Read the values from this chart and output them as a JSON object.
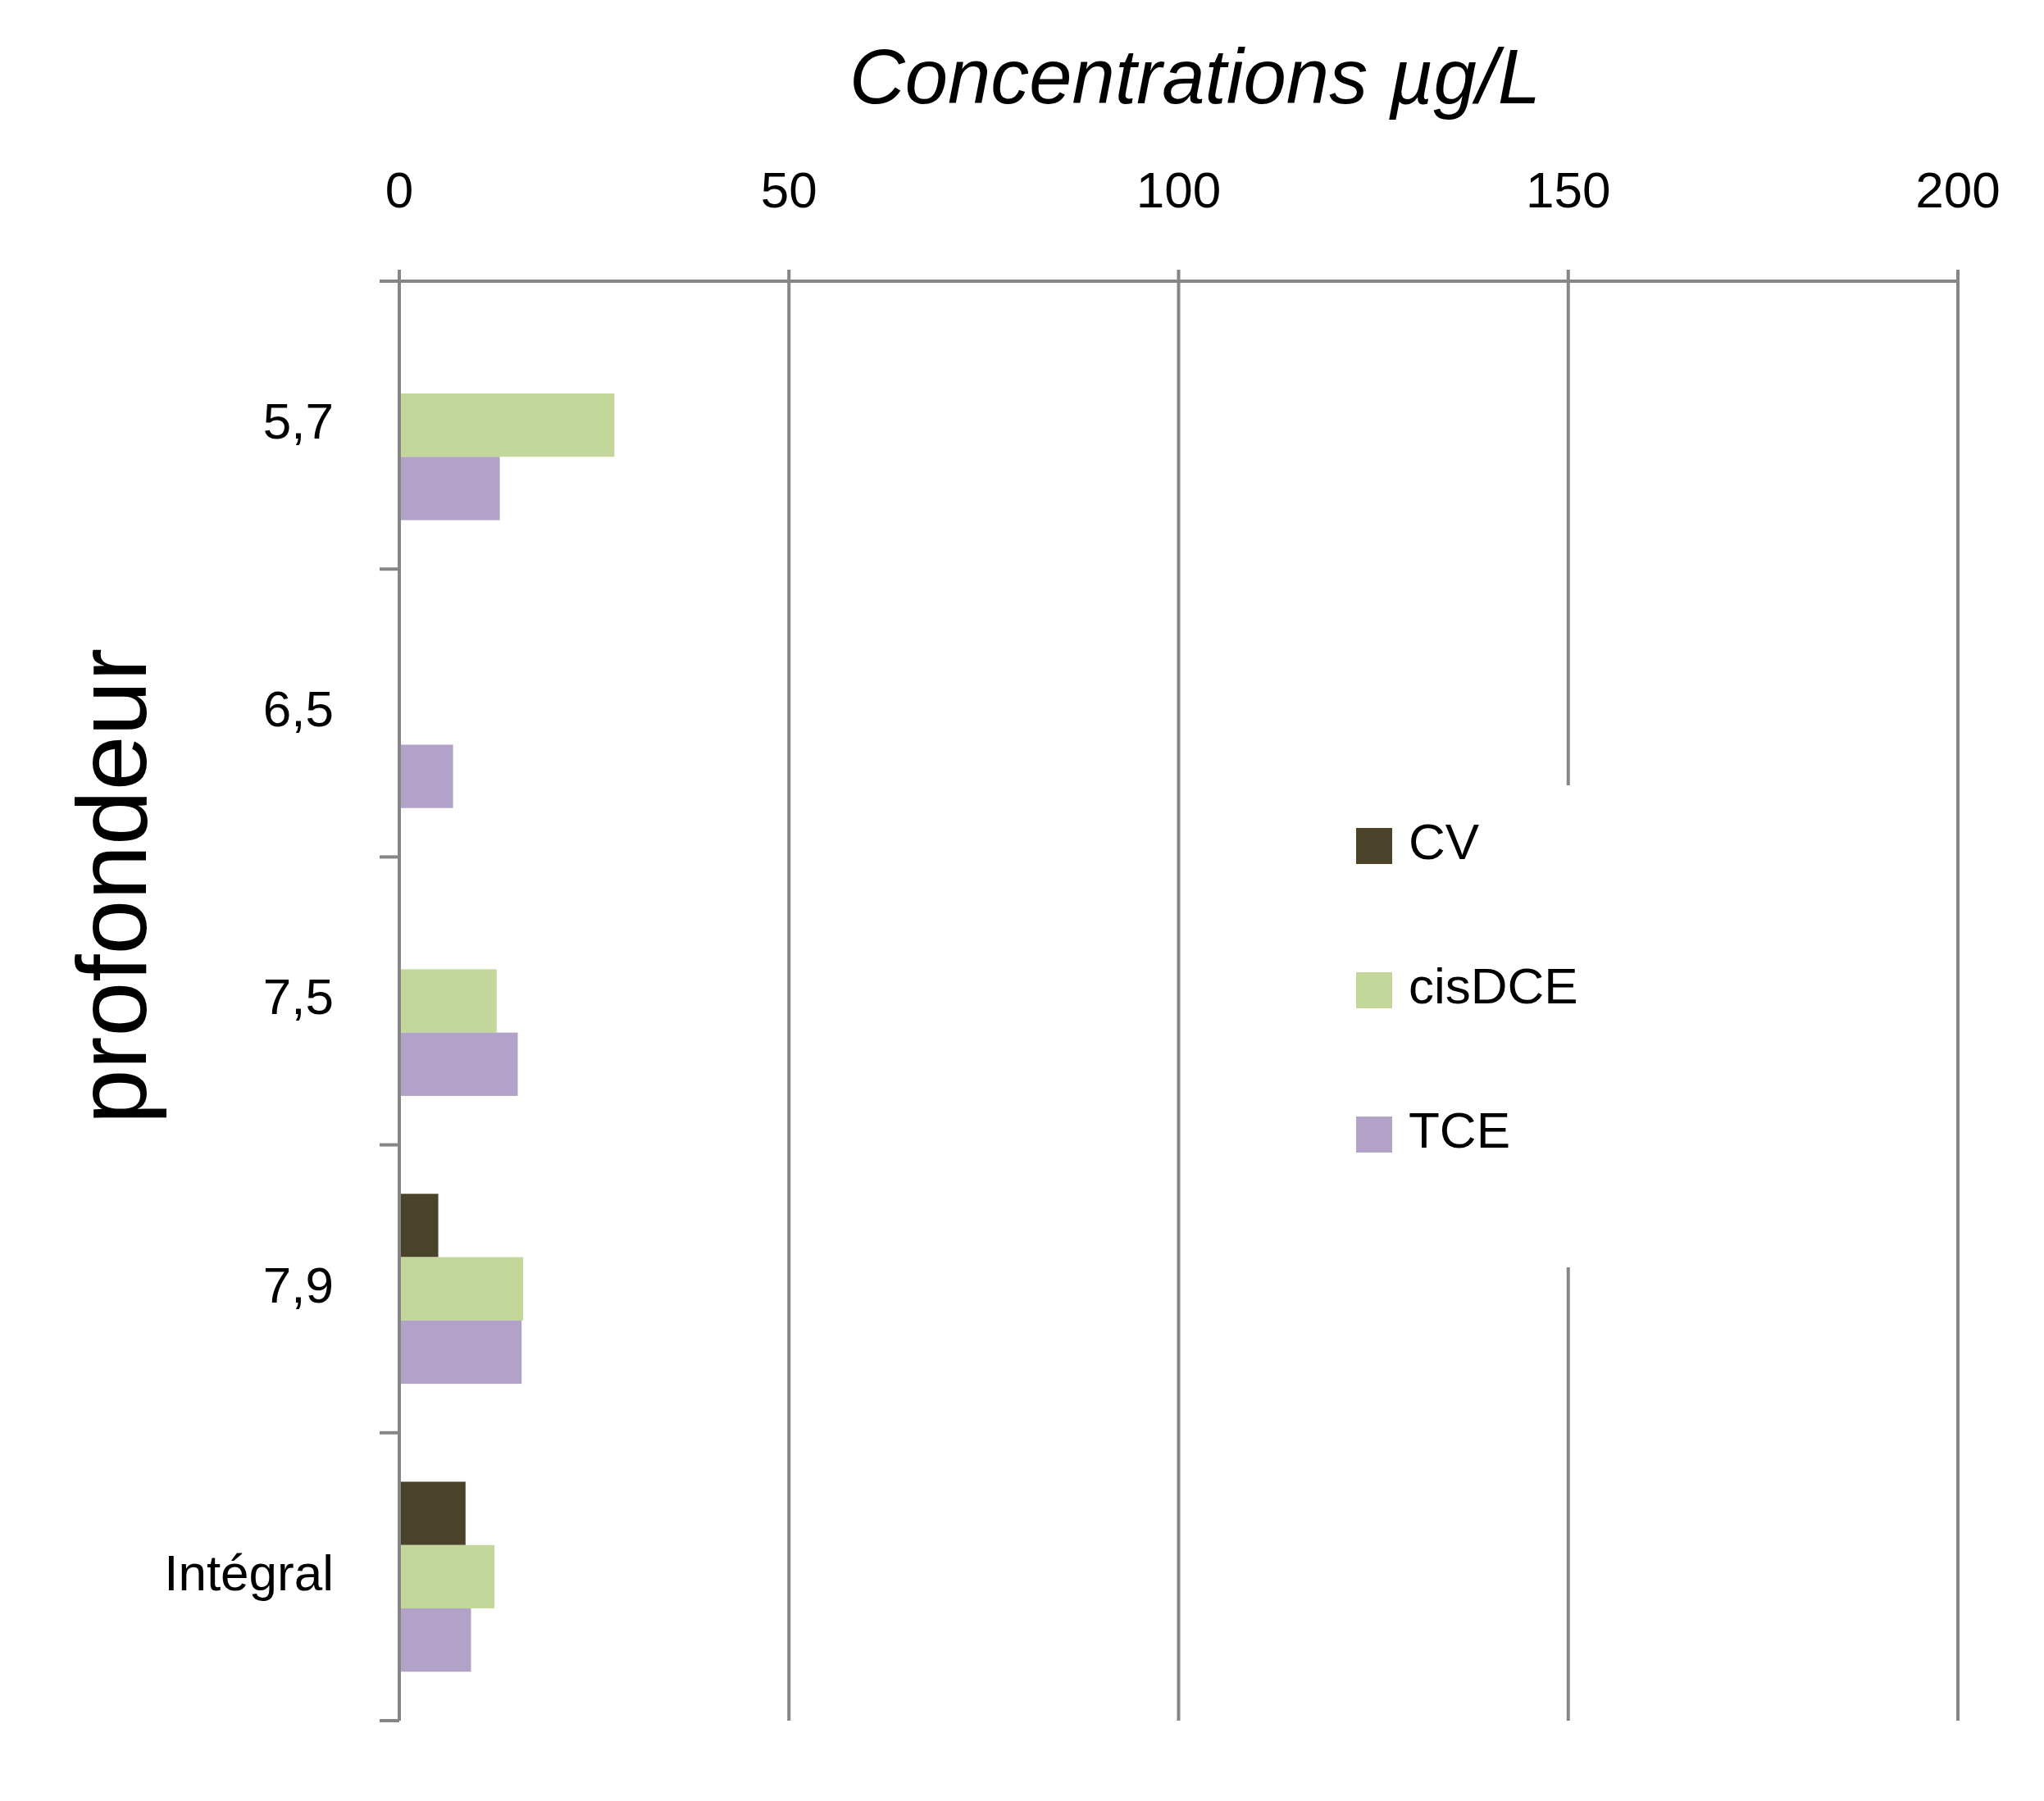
{
  "chart_data": {
    "type": "bar",
    "orientation": "horizontal",
    "xlabel": "Concentrations µg/L",
    "ylabel": "profondeur",
    "categories": [
      "5,7",
      "6,5",
      "7,5",
      "7,9",
      "Intégral"
    ],
    "series": [
      {
        "name": "CV",
        "color": "#4a4229",
        "values": [
          null,
          null,
          null,
          5.0,
          8.5
        ]
      },
      {
        "name": "cisDCE",
        "color": "#c4d79b",
        "values": [
          27.6,
          null,
          12.5,
          15.9,
          12.2
        ]
      },
      {
        "name": "TCE",
        "color": "#b3a2c7",
        "values": [
          12.9,
          6.9,
          15.2,
          15.7,
          9.2
        ]
      }
    ],
    "xlim": [
      0,
      200
    ],
    "xticks": [
      0,
      50,
      100,
      150,
      200
    ],
    "grid": "x",
    "legend": "right"
  }
}
